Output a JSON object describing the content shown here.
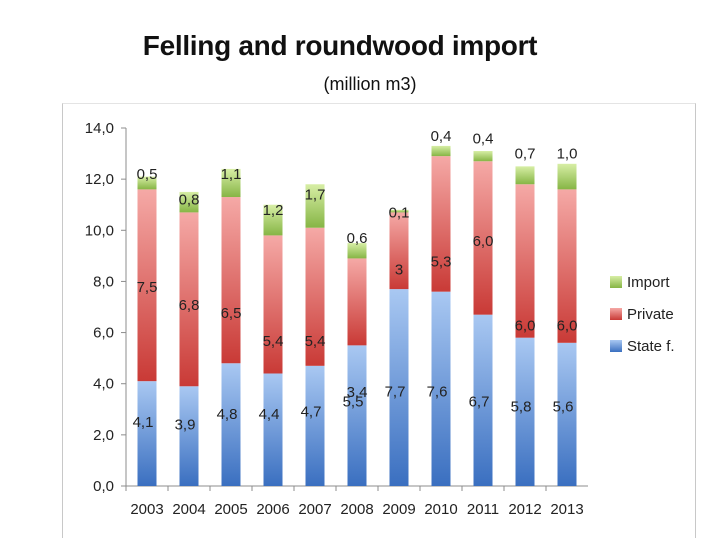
{
  "chart_data": {
    "type": "bar",
    "stacked": true,
    "title": "Felling and roundwood import",
    "subtitle": "(million m3)",
    "categories": [
      "2003",
      "2004",
      "2005",
      "2006",
      "2007",
      "2008",
      "2009",
      "2010",
      "2011",
      "2012",
      "2013"
    ],
    "series": [
      {
        "name": "State f.",
        "color": "#4f81bd",
        "values": [
          4.1,
          3.9,
          4.8,
          4.4,
          4.7,
          5.5,
          7.7,
          7.6,
          6.7,
          5.8,
          5.6
        ],
        "labels": [
          "4,1",
          "3,9",
          "4,8",
          "4,4",
          "4,7",
          "5,5",
          "7,7",
          "7,6",
          "6,7",
          "5,8",
          "5,6"
        ]
      },
      {
        "name": "Private",
        "color": "#c0504d",
        "values": [
          7.5,
          6.8,
          6.5,
          5.4,
          5.4,
          3.4,
          3,
          5.3,
          6.0,
          6.0,
          6.0
        ],
        "labels": [
          "7,5",
          "6,8",
          "6,5",
          "5,4",
          "5,4",
          "3,4",
          "3",
          "5,3",
          "6,0",
          "6,0",
          "6,0"
        ]
      },
      {
        "name": "Import",
        "color": "#9bbb59",
        "values": [
          0.5,
          0.8,
          1.1,
          1.2,
          1.7,
          0.6,
          0.1,
          0.4,
          0.4,
          0.7,
          1.0
        ],
        "labels": [
          "0,5",
          "0,8",
          "1,1",
          "1,2",
          "1,7",
          "0,6",
          "0,1",
          "0,4",
          "0,4",
          "0,7",
          "1,0"
        ]
      }
    ],
    "ylim": [
      0,
      14
    ],
    "yticks": [
      "0,0",
      "2,0",
      "4,0",
      "6,0",
      "8,0",
      "10,0",
      "12,0",
      "14,0"
    ],
    "xlabel": "",
    "ylabel": "",
    "legend": "right",
    "grid": false
  }
}
